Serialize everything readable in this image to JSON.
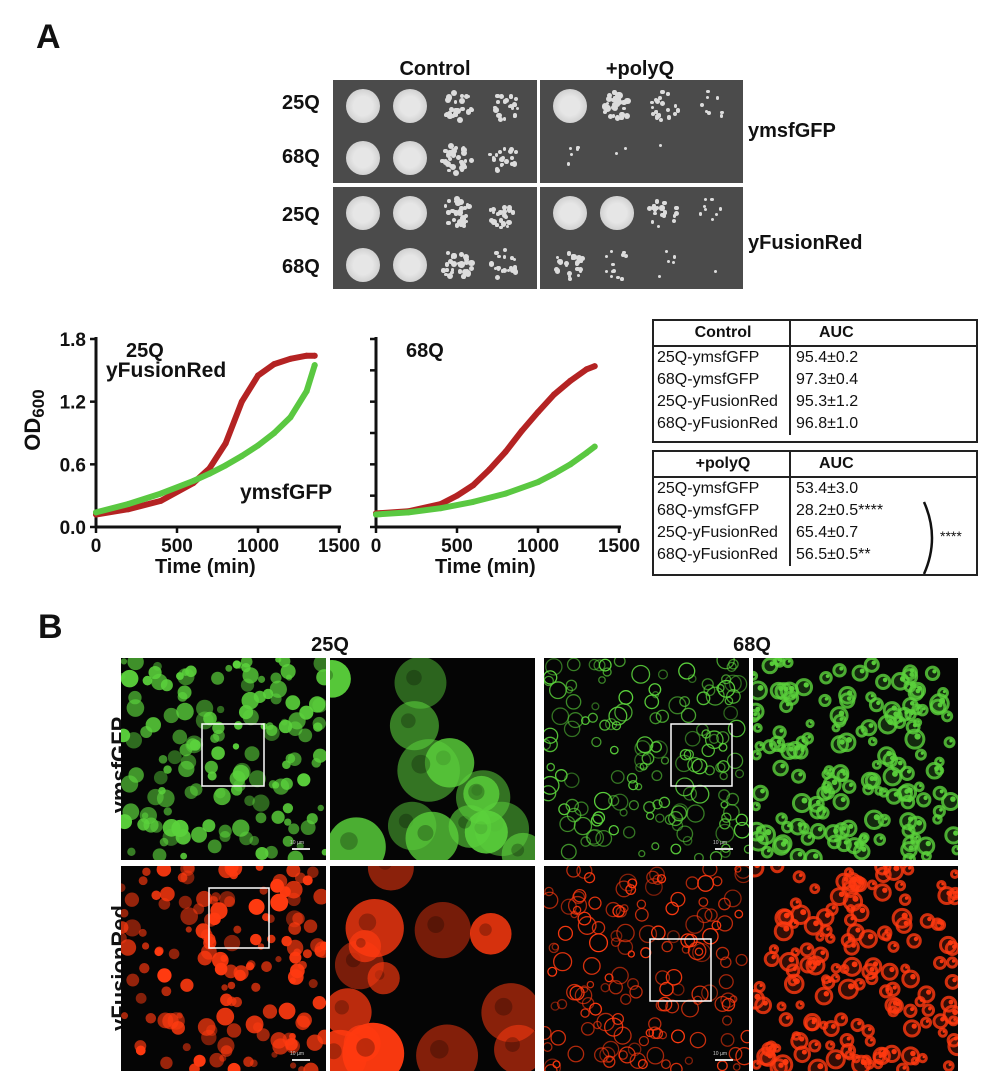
{
  "panel_a": {
    "letter": "A",
    "conditions": [
      "Control",
      "+polyQ"
    ],
    "rows": [
      "25Q",
      "68Q",
      "25Q",
      "68Q"
    ],
    "strains": [
      "ymsfGFP",
      "yFusionRed"
    ]
  },
  "growth_curves": {
    "ylabel": "OD",
    "ylabel_sub": "600"
  },
  "chart_data": [
    {
      "type": "line",
      "title": "25Q",
      "xlabel": "Time (min)",
      "ylabel": "OD600",
      "xlim": [
        0,
        1500
      ],
      "ylim": [
        0.0,
        1.8
      ],
      "xticks": [
        "0",
        "500",
        "1000",
        "1500"
      ],
      "yticks": [
        "0.0",
        "0.6",
        "1.2",
        "1.8"
      ],
      "series": [
        {
          "name": "yFusionRed",
          "color": "#b42323",
          "x": [
            0,
            200,
            400,
            600,
            700,
            800,
            900,
            1000,
            1100,
            1200,
            1300,
            1350
          ],
          "y": [
            0.12,
            0.17,
            0.25,
            0.42,
            0.56,
            0.8,
            1.2,
            1.45,
            1.56,
            1.61,
            1.64,
            1.64
          ]
        },
        {
          "name": "ymsfGFP",
          "color": "#5ac841",
          "x": [
            0,
            200,
            400,
            600,
            700,
            800,
            900,
            1000,
            1100,
            1200,
            1300,
            1350
          ],
          "y": [
            0.14,
            0.22,
            0.32,
            0.44,
            0.51,
            0.59,
            0.68,
            0.78,
            0.9,
            1.05,
            1.3,
            1.55
          ]
        }
      ]
    },
    {
      "type": "line",
      "title": "68Q",
      "xlabel": "Time (min)",
      "ylabel": "",
      "xlim": [
        0,
        1500
      ],
      "ylim": [
        0.0,
        1.8
      ],
      "xticks": [
        "0",
        "500",
        "1000",
        "1500"
      ],
      "yticks": [],
      "series": [
        {
          "name": "",
          "color": "#b42323",
          "x": [
            0,
            200,
            400,
            500,
            600,
            700,
            800,
            900,
            1000,
            1100,
            1200,
            1300,
            1350
          ],
          "y": [
            0.13,
            0.15,
            0.22,
            0.3,
            0.4,
            0.55,
            0.72,
            0.92,
            1.1,
            1.27,
            1.4,
            1.51,
            1.54
          ]
        },
        {
          "name": "",
          "color": "#5ac841",
          "x": [
            0,
            200,
            400,
            600,
            800,
            1000,
            1100,
            1200,
            1300,
            1350
          ],
          "y": [
            0.12,
            0.14,
            0.18,
            0.24,
            0.32,
            0.43,
            0.51,
            0.6,
            0.71,
            0.77
          ]
        }
      ]
    },
    {
      "type": "table",
      "title": "",
      "tables": [
        {
          "header": [
            "Control",
            "AUC"
          ],
          "rows": [
            [
              "25Q-ymsfGFP",
              "95.4±0.2"
            ],
            [
              "68Q-ymsfGFP",
              "97.3±0.4"
            ],
            [
              "25Q-yFusionRed",
              "95.3±1.2"
            ],
            [
              "68Q-yFusionRed",
              "96.8±1.0"
            ]
          ]
        },
        {
          "header": [
            "+polyQ",
            "AUC"
          ],
          "rows": [
            [
              "25Q-ymsfGFP",
              "53.4±3.0"
            ],
            [
              "68Q-ymsfGFP",
              "28.2±0.5****"
            ],
            [
              "25Q-yFusionRed",
              "65.4±0.7"
            ],
            [
              "68Q-yFusionRed",
              "56.5±0.5**"
            ]
          ],
          "bracket_label": "****"
        }
      ]
    }
  ],
  "panel_b": {
    "letter": "B",
    "columns": [
      "25Q",
      "68Q"
    ],
    "rows": [
      "ymsfGFP",
      "yFusionRed"
    ],
    "scale_label": "10 µm",
    "colors": {
      "green": "#5bd23c",
      "red": "#ff3a10"
    }
  }
}
